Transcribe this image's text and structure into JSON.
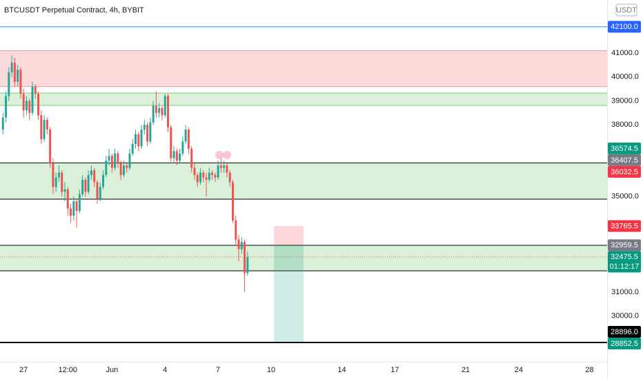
{
  "chart_data": {
    "type": "candlestick",
    "title": "BTCUSDT Perpetual Contract, 4h, BYBIT",
    "currency": "USDT",
    "up_color": "#26a69a",
    "down_color": "#ef5350",
    "candles": [
      [
        37800,
        38500,
        37600,
        38300
      ],
      [
        38300,
        39400,
        38100,
        39200
      ],
      [
        39200,
        40400,
        39000,
        40200
      ],
      [
        40200,
        40900,
        40000,
        40600
      ],
      [
        40600,
        40800,
        39600,
        39800
      ],
      [
        39800,
        40500,
        39600,
        40300
      ],
      [
        40300,
        40400,
        39100,
        39300
      ],
      [
        39300,
        39500,
        38300,
        38600
      ],
      [
        38600,
        39200,
        38400,
        39000
      ],
      [
        39000,
        39100,
        38200,
        38500
      ],
      [
        38500,
        39800,
        38400,
        39600
      ],
      [
        39600,
        39700,
        39100,
        39300
      ],
      [
        39300,
        39400,
        38200,
        38400
      ],
      [
        38400,
        38600,
        37200,
        37400
      ],
      [
        37400,
        38400,
        37300,
        38200
      ],
      [
        38200,
        38300,
        37600,
        37800
      ],
      [
        37800,
        37900,
        36200,
        36400
      ],
      [
        36400,
        36600,
        35100,
        35400
      ],
      [
        35400,
        36000,
        35200,
        35800
      ],
      [
        35800,
        36300,
        35600,
        36000
      ],
      [
        36000,
        36100,
        35000,
        35200
      ],
      [
        35200,
        35600,
        34800,
        35300
      ],
      [
        35300,
        35400,
        34200,
        34500
      ],
      [
        34500,
        34700,
        33900,
        34200
      ],
      [
        34200,
        35000,
        34000,
        34800
      ],
      [
        34800,
        34900,
        33700,
        34400
      ],
      [
        34400,
        35300,
        34300,
        35100
      ],
      [
        35100,
        35900,
        35000,
        35700
      ],
      [
        35700,
        35800,
        35000,
        35200
      ],
      [
        35200,
        36100,
        35100,
        35900
      ],
      [
        35900,
        36300,
        35700,
        36100
      ],
      [
        36100,
        36200,
        35400,
        35600
      ],
      [
        35600,
        35700,
        34700,
        34900
      ],
      [
        34900,
        35600,
        34800,
        35400
      ],
      [
        35400,
        36100,
        35300,
        35900
      ],
      [
        35900,
        36700,
        35800,
        36500
      ],
      [
        36500,
        37000,
        36300,
        36700
      ],
      [
        36700,
        36800,
        36000,
        36200
      ],
      [
        36200,
        37000,
        36100,
        36800
      ],
      [
        36800,
        36900,
        36200,
        36400
      ],
      [
        36400,
        36500,
        35700,
        35900
      ],
      [
        35900,
        36500,
        35800,
        36300
      ],
      [
        36300,
        36400,
        36000,
        36200
      ],
      [
        36200,
        37000,
        36100,
        36800
      ],
      [
        36800,
        37400,
        36700,
        37200
      ],
      [
        37200,
        37800,
        37000,
        37600
      ],
      [
        37600,
        37700,
        36900,
        37100
      ],
      [
        37100,
        38000,
        37000,
        37800
      ],
      [
        37800,
        38200,
        37600,
        38000
      ],
      [
        38000,
        38100,
        37100,
        37300
      ],
      [
        37300,
        38300,
        37200,
        38100
      ],
      [
        38100,
        39000,
        38000,
        38800
      ],
      [
        38800,
        39400,
        38300,
        38500
      ],
      [
        38500,
        38900,
        38300,
        38700
      ],
      [
        38700,
        38800,
        38200,
        38400
      ],
      [
        38400,
        39300,
        38300,
        39200
      ],
      [
        39200,
        39300,
        37700,
        37900
      ],
      [
        37900,
        38000,
        36400,
        36600
      ],
      [
        36600,
        37100,
        36400,
        36900
      ],
      [
        36900,
        37000,
        36300,
        36500
      ],
      [
        36500,
        37000,
        36400,
        36800
      ],
      [
        36800,
        37500,
        36700,
        37300
      ],
      [
        37300,
        38000,
        37200,
        37800
      ],
      [
        37800,
        37900,
        36800,
        37000
      ],
      [
        37000,
        37100,
        36000,
        36200
      ],
      [
        36200,
        36400,
        35700,
        35900
      ],
      [
        35900,
        36000,
        35400,
        35600
      ],
      [
        35600,
        36200,
        35500,
        36000
      ],
      [
        36000,
        36100,
        35600,
        35800
      ],
      [
        35800,
        36000,
        35000,
        35700
      ],
      [
        35700,
        36200,
        35600,
        36000
      ],
      [
        36000,
        36100,
        35700,
        35900
      ],
      [
        35900,
        36000,
        35600,
        35800
      ],
      [
        35800,
        36500,
        35700,
        36300
      ],
      [
        36300,
        36600,
        36000,
        36200
      ],
      [
        36200,
        36500,
        36000,
        36300
      ],
      [
        36300,
        36400,
        35800,
        36000
      ],
      [
        36000,
        36100,
        35400,
        35600
      ],
      [
        35600,
        35700,
        33900,
        34000
      ],
      [
        34000,
        34200,
        33000,
        33200
      ],
      [
        33200,
        33400,
        32300,
        32800
      ],
      [
        32800,
        33300,
        32600,
        33100
      ],
      [
        33100,
        33200,
        31000,
        31800
      ],
      [
        31800,
        32700,
        31700,
        32475.5
      ]
    ],
    "xlim": [
      -1,
      205
    ],
    "xticks": [
      {
        "value": 7,
        "label": "27"
      },
      {
        "value": 22,
        "label": "12:00"
      },
      {
        "value": 37,
        "label": "Jun"
      },
      {
        "value": 55,
        "label": "4"
      },
      {
        "value": 73,
        "label": "7"
      },
      {
        "value": 91,
        "label": "10"
      },
      {
        "value": 115,
        "label": "14"
      },
      {
        "value": 133,
        "label": "17"
      },
      {
        "value": 157,
        "label": "21"
      },
      {
        "value": 175,
        "label": "24"
      },
      {
        "value": 199,
        "label": "28"
      }
    ],
    "ylim": [
      28090,
      43219
    ],
    "yticks": [
      {
        "value": 41000,
        "label": "41000.0"
      },
      {
        "value": 40000,
        "label": "40000.0"
      },
      {
        "value": 39000,
        "label": "39000.0"
      },
      {
        "value": 38000,
        "label": "38000.0"
      },
      {
        "value": 35000,
        "label": "35000.0"
      },
      {
        "value": 31000,
        "label": "31000.0"
      },
      {
        "value": 30000,
        "label": "30000.0"
      }
    ],
    "zones": [
      {
        "from": 39600,
        "to": 41100,
        "color": "#fbdada",
        "border": "#ef9a9a"
      },
      {
        "from": 38810,
        "to": 39330,
        "color": "#daf0d8",
        "border": "#81c784"
      },
      {
        "from": 34890,
        "to": 36407.5,
        "color": "#daf0d8",
        "border": "#000000"
      },
      {
        "from": 31893,
        "to": 32959.5,
        "color": "#daf0d8",
        "border": "#000000"
      }
    ],
    "lines": [
      {
        "value": 42100,
        "color": "#2196f3",
        "width": 1
      },
      {
        "value": 28896,
        "color": "#000000",
        "width": 2
      }
    ],
    "position": {
      "x": [
        92,
        102
      ],
      "entry": 32959.5,
      "stop": 33765.5,
      "target": 28896
    },
    "last_price_line": 32475.5,
    "price_labels": [
      {
        "value": 42100,
        "label": "42100.0",
        "color": "#2962ff"
      },
      {
        "value": 36574.5,
        "label": "36574.5",
        "color": "#089981"
      },
      {
        "value": 36407.5,
        "label": "36407.5",
        "color": "#787b86"
      },
      {
        "value": 36032.5,
        "label": "36032.5",
        "color": "#f23645"
      },
      {
        "value": 33765.5,
        "label": "33765.5",
        "color": "#f23645"
      },
      {
        "value": 32959.5,
        "label": "32959.5",
        "color": "#787b86"
      },
      {
        "value": 32475.5,
        "label": "32475.5",
        "color": "#089981",
        "countdown": "01:12:17"
      },
      {
        "value": 28896,
        "label": "28896.0",
        "color": "#000000"
      },
      {
        "value": 28852.5,
        "label": "28852.5",
        "color": "#089981"
      }
    ]
  }
}
